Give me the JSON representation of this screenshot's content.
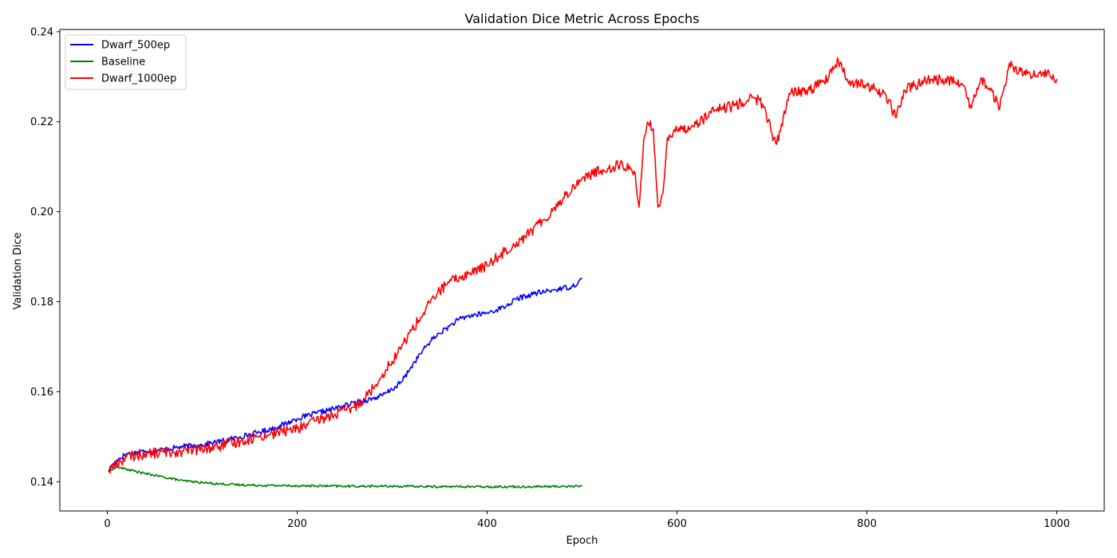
{
  "chart_data": {
    "type": "line",
    "title": "Validation Dice Metric Across Epochs",
    "xlabel": "Epoch",
    "ylabel": "Validation Dice",
    "xlim": [
      -50,
      1050
    ],
    "ylim": [
      0.1335,
      0.2405
    ],
    "xticks": [
      0,
      200,
      400,
      600,
      800,
      1000
    ],
    "yticks": [
      0.14,
      0.16,
      0.18,
      0.2,
      0.22,
      0.24
    ],
    "ytick_labels": [
      "0.14",
      "0.16",
      "0.18",
      "0.20",
      "0.22",
      "0.24"
    ],
    "xtick_labels": [
      "0",
      "200",
      "400",
      "600",
      "800",
      "1000"
    ],
    "grid": false,
    "legend_position": "top-left",
    "series": [
      {
        "name": "Dwarf_500ep",
        "color": "#0000ff",
        "x": [
          1,
          10,
          20,
          40,
          60,
          80,
          100,
          120,
          140,
          160,
          180,
          200,
          220,
          240,
          260,
          280,
          290,
          300,
          310,
          320,
          330,
          340,
          350,
          360,
          370,
          380,
          400,
          410,
          420,
          430,
          440,
          450,
          460,
          470,
          480,
          490,
          500
        ],
        "y": [
          0.1425,
          0.1448,
          0.1462,
          0.1468,
          0.1472,
          0.1478,
          0.1482,
          0.149,
          0.15,
          0.151,
          0.1522,
          0.154,
          0.1552,
          0.1563,
          0.1575,
          0.1585,
          0.1592,
          0.1605,
          0.1622,
          0.1655,
          0.1685,
          0.1712,
          0.173,
          0.1745,
          0.176,
          0.1768,
          0.1775,
          0.1782,
          0.179,
          0.1805,
          0.1812,
          0.1818,
          0.1822,
          0.1826,
          0.183,
          0.1834,
          0.185
        ]
      },
      {
        "name": "Baseline",
        "color": "#008000",
        "x": [
          1,
          10,
          20,
          40,
          60,
          80,
          100,
          120,
          140,
          160,
          200,
          250,
          300,
          350,
          400,
          450,
          500
        ],
        "y": [
          0.1425,
          0.1432,
          0.1428,
          0.1418,
          0.141,
          0.1402,
          0.1398,
          0.1395,
          0.1393,
          0.1392,
          0.1391,
          0.139,
          0.139,
          0.1389,
          0.1389,
          0.1389,
          0.139
        ]
      },
      {
        "name": "Dwarf_1000ep",
        "color": "#ff0000",
        "x": [
          1,
          20,
          40,
          60,
          80,
          100,
          120,
          140,
          160,
          180,
          200,
          220,
          240,
          260,
          270,
          280,
          290,
          300,
          310,
          320,
          330,
          340,
          350,
          360,
          380,
          400,
          420,
          440,
          460,
          480,
          500,
          520,
          540,
          555,
          560,
          565,
          570,
          575,
          580,
          585,
          590,
          600,
          620,
          640,
          660,
          680,
          690,
          700,
          705,
          710,
          720,
          740,
          760,
          770,
          780,
          800,
          820,
          830,
          840,
          850,
          860,
          880,
          900,
          910,
          920,
          930,
          940,
          950,
          960,
          980,
          990,
          1000
        ],
        "y": [
          0.1425,
          0.1455,
          0.1462,
          0.1465,
          0.1468,
          0.1472,
          0.148,
          0.149,
          0.15,
          0.151,
          0.1518,
          0.1535,
          0.155,
          0.1565,
          0.1585,
          0.1608,
          0.164,
          0.1668,
          0.17,
          0.1735,
          0.1765,
          0.1798,
          0.1825,
          0.1843,
          0.1862,
          0.188,
          0.1915,
          0.1945,
          0.1982,
          0.203,
          0.2075,
          0.2092,
          0.2105,
          0.209,
          0.201,
          0.216,
          0.2195,
          0.2185,
          0.201,
          0.204,
          0.2165,
          0.218,
          0.2195,
          0.2225,
          0.2235,
          0.2255,
          0.224,
          0.2175,
          0.215,
          0.2195,
          0.2265,
          0.227,
          0.23,
          0.2335,
          0.229,
          0.228,
          0.226,
          0.221,
          0.227,
          0.228,
          0.229,
          0.2295,
          0.2285,
          0.223,
          0.2295,
          0.227,
          0.223,
          0.233,
          0.231,
          0.23,
          0.231,
          0.2295
        ]
      }
    ]
  }
}
